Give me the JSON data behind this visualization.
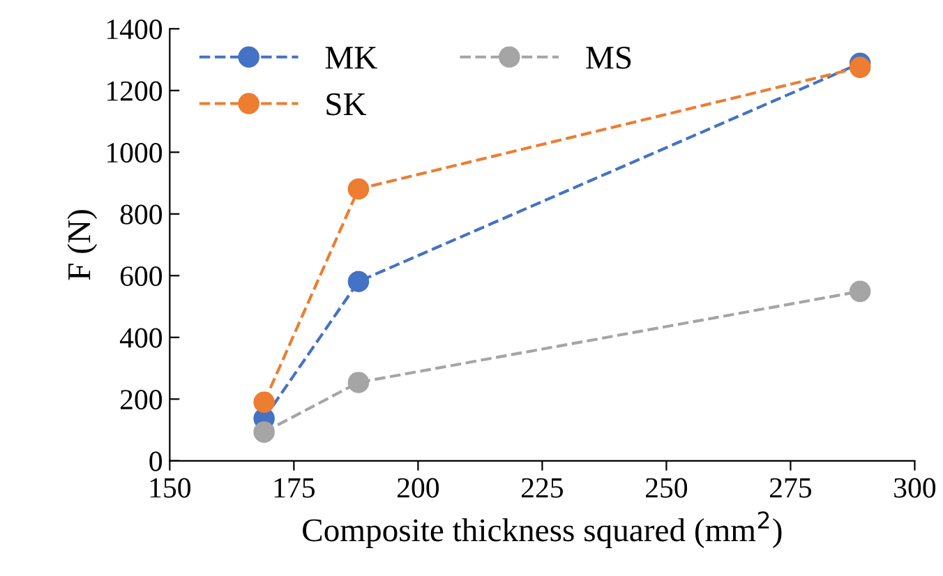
{
  "chart_data": {
    "type": "line",
    "xlabel": "Composite thickness squared (mm$^{2}$)",
    "ylabel": "F (N)",
    "x": [
      169,
      188,
      289
    ],
    "series": [
      {
        "name": "MK",
        "color": "#4472c4",
        "values": [
          137,
          581,
          1288
        ]
      },
      {
        "name": "SK",
        "color": "#ed7d31",
        "values": [
          190,
          881,
          1275
        ]
      },
      {
        "name": "MS",
        "color": "#a5a5a5",
        "values": [
          93,
          254,
          549
        ]
      }
    ],
    "xlim": [
      150,
      300
    ],
    "xticks": [
      150,
      175,
      200,
      225,
      250,
      275,
      300
    ],
    "ylim": [
      0,
      1400
    ],
    "yticks": [
      0,
      200,
      400,
      600,
      800,
      1000,
      1200,
      1400
    ],
    "grid": false,
    "legend": "top left",
    "marker": "circle",
    "line_style": "dashed"
  }
}
